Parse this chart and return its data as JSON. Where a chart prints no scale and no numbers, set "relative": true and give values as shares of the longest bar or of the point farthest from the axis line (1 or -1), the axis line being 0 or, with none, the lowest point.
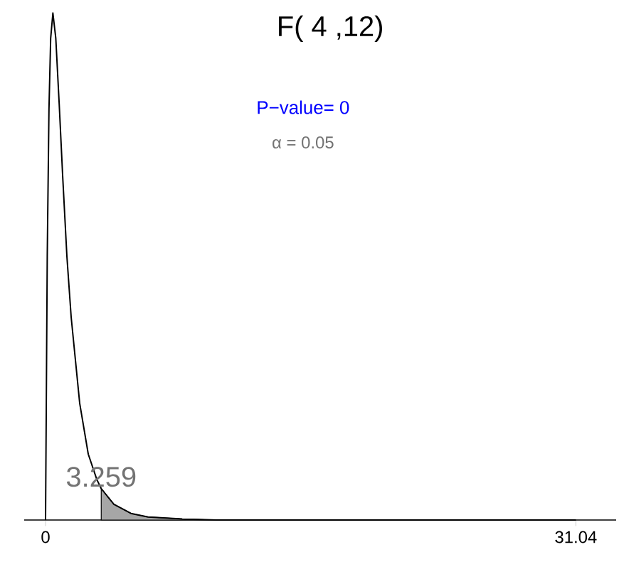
{
  "chart_data": {
    "type": "line",
    "title": "F( 4 ,12)",
    "relative": true,
    "x": [
      0,
      0.1,
      0.2,
      0.3,
      0.43,
      0.6,
      0.8,
      1,
      1.25,
      1.5,
      2,
      2.5,
      3,
      3.259,
      4,
      5,
      6,
      8,
      10,
      15,
      20,
      31.04
    ],
    "series": [
      {
        "type": "area",
        "color": "#a6a6a6",
        "x": [
          3.259,
          4,
          5,
          6,
          8,
          10,
          15,
          20,
          31.04
        ],
        "values": [
          0.062,
          0.031,
          0.013,
          0.006,
          0.002,
          0,
          0,
          0,
          0
        ]
      },
      {
        "color": "#000000",
        "values": [
          0,
          0.52,
          0.81,
          0.95,
          1,
          0.95,
          0.82,
          0.68,
          0.52,
          0.4,
          0.23,
          0.13,
          0.08,
          0.062,
          0.031,
          0.013,
          0.006,
          0.002,
          0,
          0,
          0,
          0
        ]
      }
    ],
    "xlim": [
      -1.25,
      33.4
    ],
    "xticks": [
      0,
      31.04
    ],
    "annotations": [
      "P−value=  0",
      "α = 0.05",
      {
        "text": "3.259",
        "x": 3.259,
        "y": 0.062
      }
    ],
    "marker": "none",
    "line_style": "solid"
  }
}
